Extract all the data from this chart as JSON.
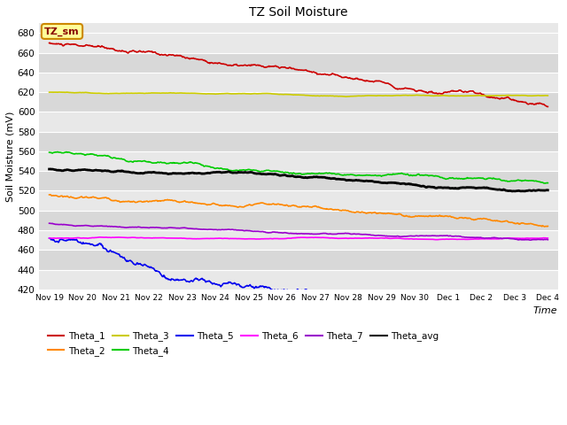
{
  "title": "TZ Soil Moisture",
  "xlabel": "Time",
  "ylabel": "Soil Moisture (mV)",
  "ylim": [
    420,
    690
  ],
  "yticks": [
    420,
    440,
    460,
    480,
    500,
    520,
    540,
    560,
    580,
    600,
    620,
    640,
    660,
    680
  ],
  "xtick_labels": [
    "Nov 19",
    "Nov 20",
    "Nov 21",
    "Nov 22",
    "Nov 23",
    "Nov 24",
    "Nov 25",
    "Nov 26",
    "Nov 27",
    "Nov 28",
    "Nov 29",
    "Nov 30",
    "Dec 1",
    "Dec 2",
    "Dec 3",
    "Dec 4"
  ],
  "fig_bg_color": "#ffffff",
  "plot_bg_color": "#e8e8e8",
  "band_color_light": "#e8e8e8",
  "band_color_dark": "#d8d8d8",
  "grid_color": "#ffffff",
  "series": {
    "Theta_1": {
      "color": "#cc0000"
    },
    "Theta_2": {
      "color": "#ff8800"
    },
    "Theta_3": {
      "color": "#cccc00"
    },
    "Theta_4": {
      "color": "#00cc00"
    },
    "Theta_5": {
      "color": "#0000ee"
    },
    "Theta_6": {
      "color": "#ff00ff"
    },
    "Theta_7": {
      "color": "#9900cc"
    },
    "Theta_avg": {
      "color": "#000000"
    }
  },
  "legend_order": [
    "Theta_1",
    "Theta_2",
    "Theta_3",
    "Theta_4",
    "Theta_5",
    "Theta_6",
    "Theta_7",
    "Theta_avg"
  ],
  "annotation_text": "TZ_sm",
  "annotation_bg": "#ffff99",
  "annotation_border": "#cc8800",
  "annotation_text_color": "#880000"
}
